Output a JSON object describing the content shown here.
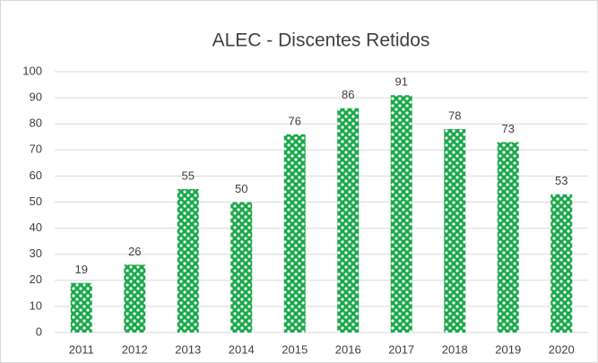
{
  "chart_data": {
    "type": "bar",
    "title": "ALEC - Discentes Retidos",
    "categories": [
      "2011",
      "2012",
      "2013",
      "2014",
      "2015",
      "2016",
      "2017",
      "2018",
      "2019",
      "2020"
    ],
    "values": [
      19,
      26,
      55,
      50,
      76,
      86,
      91,
      78,
      73,
      53
    ],
    "color": "#1aa84a",
    "ylim": [
      0,
      100
    ],
    "yticks": [
      0,
      10,
      20,
      30,
      40,
      50,
      60,
      70,
      80,
      90,
      100
    ],
    "grid": true
  }
}
